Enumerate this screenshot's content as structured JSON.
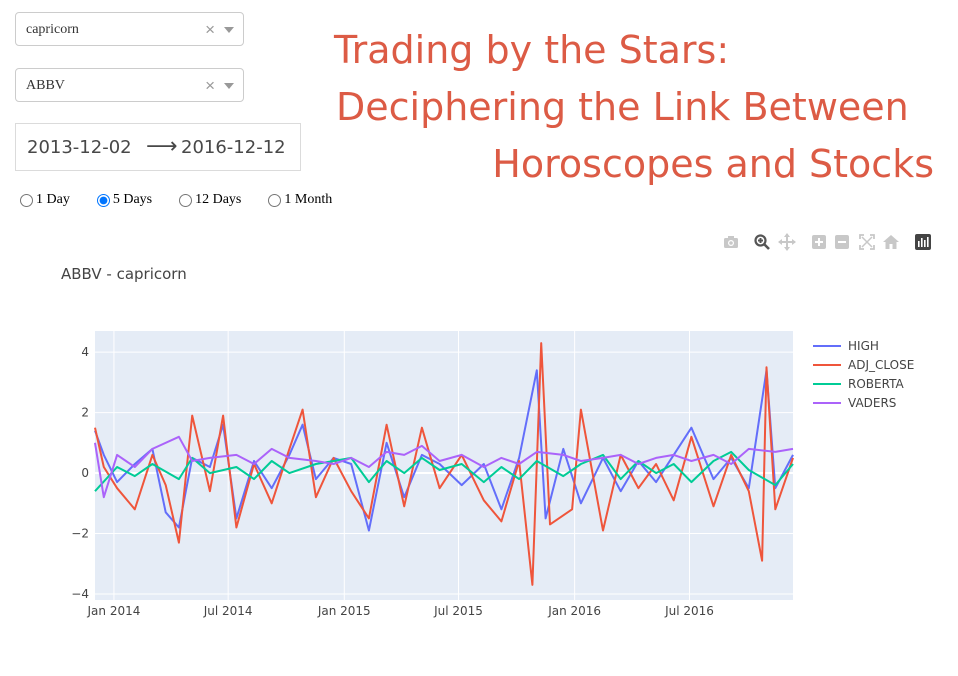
{
  "controls": {
    "sign_dropdown": {
      "value": "capricorn",
      "clear": "×"
    },
    "ticker_dropdown": {
      "value": "ABBV",
      "clear": "×"
    },
    "date_range": {
      "start": "2013-12-02",
      "arrow": "⟶",
      "end": "2016-12-12"
    },
    "frequency_options": [
      {
        "label": "1 Day",
        "checked": false
      },
      {
        "label": "5 Days",
        "checked": true
      },
      {
        "label": "12 Days",
        "checked": false
      },
      {
        "label": "1 Month",
        "checked": false
      }
    ]
  },
  "page_title": {
    "line1": "Trading by the Stars:",
    "line2": "Deciphering the Link Between",
    "line3": "Horoscopes and Stocks"
  },
  "modebar_icons": [
    "camera-icon",
    "zoom-icon",
    "pan-icon",
    "zoom-in-icon",
    "zoom-out-icon",
    "autoscale-icon",
    "reset-axes-icon",
    "plotly-logo-icon"
  ],
  "chart_data": {
    "type": "line",
    "title": "ABBV - capricorn",
    "xlabel": "",
    "ylabel": "",
    "xrange": [
      "2013-12-02",
      "2016-12-12"
    ],
    "ylim": [
      -4.2,
      4.7
    ],
    "x_tick_labels": [
      "Jan 2014",
      "Jul 2014",
      "Jan 2015",
      "Jul 2015",
      "Jan 2016",
      "Jul 2016"
    ],
    "x_tick_dates": [
      "2014-01-01",
      "2014-07-01",
      "2015-01-01",
      "2015-07-01",
      "2016-01-01",
      "2016-07-01"
    ],
    "y_ticks": [
      -4,
      -2,
      0,
      2,
      4
    ],
    "y_tick_labels": [
      "−4",
      "−2",
      "0",
      "2",
      "4"
    ],
    "grid": true,
    "legend_position": "top-right",
    "colors": {
      "HIGH": "#636efa",
      "ADJ_CLOSE": "#ef553b",
      "ROBERTA": "#00cc96",
      "VADERS": "#ab63fa",
      "plot_bg": "#e5ecf6"
    },
    "series": [
      {
        "name": "HIGH",
        "points": [
          [
            "2013-12-02",
            1.4
          ],
          [
            "2013-12-16",
            0.6
          ],
          [
            "2014-01-06",
            -0.3
          ],
          [
            "2014-02-03",
            0.3
          ],
          [
            "2014-03-03",
            0.8
          ],
          [
            "2014-03-24",
            -1.3
          ],
          [
            "2014-04-14",
            -1.8
          ],
          [
            "2014-05-05",
            0.5
          ],
          [
            "2014-06-02",
            0.2
          ],
          [
            "2014-06-23",
            1.6
          ],
          [
            "2014-07-14",
            -1.5
          ],
          [
            "2014-08-11",
            0.4
          ],
          [
            "2014-09-08",
            -0.5
          ],
          [
            "2014-10-06",
            0.6
          ],
          [
            "2014-10-27",
            1.6
          ],
          [
            "2014-11-17",
            -0.2
          ],
          [
            "2014-12-15",
            0.5
          ],
          [
            "2015-01-12",
            0.3
          ],
          [
            "2015-02-09",
            -1.9
          ],
          [
            "2015-03-09",
            1.0
          ],
          [
            "2015-04-06",
            -0.8
          ],
          [
            "2015-05-04",
            0.6
          ],
          [
            "2015-06-01",
            0.3
          ],
          [
            "2015-07-06",
            -0.4
          ],
          [
            "2015-08-10",
            0.3
          ],
          [
            "2015-09-07",
            -1.2
          ],
          [
            "2015-10-05",
            0.5
          ],
          [
            "2015-11-02",
            3.4
          ],
          [
            "2015-11-16",
            -1.5
          ],
          [
            "2015-12-14",
            0.8
          ],
          [
            "2016-01-11",
            -1.0
          ],
          [
            "2016-02-15",
            0.5
          ],
          [
            "2016-03-14",
            -0.6
          ],
          [
            "2016-04-11",
            0.4
          ],
          [
            "2016-05-09",
            -0.3
          ],
          [
            "2016-06-06",
            0.6
          ],
          [
            "2016-07-04",
            1.5
          ],
          [
            "2016-08-08",
            -0.2
          ],
          [
            "2016-09-05",
            0.5
          ],
          [
            "2016-10-03",
            -0.5
          ],
          [
            "2016-10-31",
            3.4
          ],
          [
            "2016-11-14",
            -0.5
          ],
          [
            "2016-12-12",
            0.6
          ]
        ]
      },
      {
        "name": "ADJ_CLOSE",
        "points": [
          [
            "2013-12-02",
            1.5
          ],
          [
            "2013-12-16",
            0.2
          ],
          [
            "2014-01-06",
            -0.5
          ],
          [
            "2014-02-03",
            -1.2
          ],
          [
            "2014-03-03",
            0.6
          ],
          [
            "2014-03-24",
            -0.4
          ],
          [
            "2014-04-14",
            -2.3
          ],
          [
            "2014-05-05",
            1.9
          ],
          [
            "2014-06-02",
            -0.6
          ],
          [
            "2014-06-23",
            1.9
          ],
          [
            "2014-07-14",
            -1.8
          ],
          [
            "2014-08-11",
            0.3
          ],
          [
            "2014-09-08",
            -1.0
          ],
          [
            "2014-10-06",
            0.8
          ],
          [
            "2014-10-27",
            2.1
          ],
          [
            "2014-11-17",
            -0.8
          ],
          [
            "2014-12-15",
            0.5
          ],
          [
            "2015-01-12",
            -0.6
          ],
          [
            "2015-02-09",
            -1.5
          ],
          [
            "2015-03-09",
            1.6
          ],
          [
            "2015-04-06",
            -1.1
          ],
          [
            "2015-05-04",
            1.5
          ],
          [
            "2015-06-01",
            -0.5
          ],
          [
            "2015-07-06",
            0.6
          ],
          [
            "2015-08-10",
            -0.9
          ],
          [
            "2015-09-07",
            -1.6
          ],
          [
            "2015-10-05",
            0.4
          ],
          [
            "2015-10-26",
            -3.7
          ],
          [
            "2015-11-09",
            4.3
          ],
          [
            "2015-11-23",
            -1.7
          ],
          [
            "2015-12-28",
            -1.2
          ],
          [
            "2016-01-11",
            2.1
          ],
          [
            "2016-02-15",
            -1.9
          ],
          [
            "2016-03-14",
            0.6
          ],
          [
            "2016-04-11",
            -0.5
          ],
          [
            "2016-05-09",
            0.3
          ],
          [
            "2016-06-06",
            -0.9
          ],
          [
            "2016-07-04",
            1.2
          ],
          [
            "2016-08-08",
            -1.1
          ],
          [
            "2016-09-05",
            0.6
          ],
          [
            "2016-10-03",
            -0.6
          ],
          [
            "2016-10-24",
            -2.9
          ],
          [
            "2016-10-31",
            3.5
          ],
          [
            "2016-11-14",
            -1.2
          ],
          [
            "2016-12-12",
            0.5
          ]
        ]
      },
      {
        "name": "ROBERTA",
        "points": [
          [
            "2013-12-02",
            -0.6
          ],
          [
            "2014-01-06",
            0.2
          ],
          [
            "2014-02-03",
            -0.1
          ],
          [
            "2014-03-03",
            0.3
          ],
          [
            "2014-04-14",
            -0.2
          ],
          [
            "2014-05-05",
            0.5
          ],
          [
            "2014-06-02",
            0.0
          ],
          [
            "2014-07-14",
            0.2
          ],
          [
            "2014-08-11",
            -0.2
          ],
          [
            "2014-09-08",
            0.4
          ],
          [
            "2014-10-06",
            0.0
          ],
          [
            "2014-11-17",
            0.3
          ],
          [
            "2014-12-15",
            0.4
          ],
          [
            "2015-01-12",
            0.5
          ],
          [
            "2015-02-09",
            -0.3
          ],
          [
            "2015-03-09",
            0.4
          ],
          [
            "2015-04-06",
            0.0
          ],
          [
            "2015-05-04",
            0.5
          ],
          [
            "2015-06-01",
            0.1
          ],
          [
            "2015-07-06",
            0.3
          ],
          [
            "2015-08-10",
            -0.3
          ],
          [
            "2015-09-07",
            0.2
          ],
          [
            "2015-10-05",
            -0.2
          ],
          [
            "2015-11-02",
            0.4
          ],
          [
            "2015-12-14",
            -0.1
          ],
          [
            "2016-01-11",
            0.3
          ],
          [
            "2016-02-15",
            0.6
          ],
          [
            "2016-03-14",
            -0.2
          ],
          [
            "2016-04-11",
            0.4
          ],
          [
            "2016-05-09",
            0.0
          ],
          [
            "2016-06-06",
            0.3
          ],
          [
            "2016-07-04",
            -0.3
          ],
          [
            "2016-08-08",
            0.4
          ],
          [
            "2016-09-05",
            0.7
          ],
          [
            "2016-10-03",
            0.1
          ],
          [
            "2016-11-14",
            -0.4
          ],
          [
            "2016-12-12",
            0.3
          ]
        ]
      },
      {
        "name": "VADERS",
        "points": [
          [
            "2013-12-02",
            1.0
          ],
          [
            "2013-12-16",
            -0.8
          ],
          [
            "2014-01-06",
            0.6
          ],
          [
            "2014-02-03",
            0.2
          ],
          [
            "2014-03-03",
            0.8
          ],
          [
            "2014-04-14",
            1.2
          ],
          [
            "2014-05-05",
            0.4
          ],
          [
            "2014-06-02",
            0.5
          ],
          [
            "2014-07-14",
            0.6
          ],
          [
            "2014-08-11",
            0.3
          ],
          [
            "2014-09-08",
            0.8
          ],
          [
            "2014-10-06",
            0.5
          ],
          [
            "2014-11-17",
            0.4
          ],
          [
            "2014-12-15",
            0.3
          ],
          [
            "2015-01-12",
            0.5
          ],
          [
            "2015-02-09",
            0.2
          ],
          [
            "2015-03-09",
            0.7
          ],
          [
            "2015-04-06",
            0.6
          ],
          [
            "2015-05-04",
            0.9
          ],
          [
            "2015-06-01",
            0.4
          ],
          [
            "2015-07-06",
            0.6
          ],
          [
            "2015-08-10",
            0.2
          ],
          [
            "2015-09-07",
            0.5
          ],
          [
            "2015-10-05",
            0.3
          ],
          [
            "2015-11-02",
            0.7
          ],
          [
            "2015-12-14",
            0.6
          ],
          [
            "2016-01-11",
            0.4
          ],
          [
            "2016-02-15",
            0.5
          ],
          [
            "2016-03-14",
            0.6
          ],
          [
            "2016-04-11",
            0.3
          ],
          [
            "2016-05-09",
            0.5
          ],
          [
            "2016-06-06",
            0.6
          ],
          [
            "2016-07-04",
            0.4
          ],
          [
            "2016-08-08",
            0.6
          ],
          [
            "2016-09-05",
            0.3
          ],
          [
            "2016-10-03",
            0.8
          ],
          [
            "2016-11-14",
            0.7
          ],
          [
            "2016-12-12",
            0.8
          ]
        ]
      }
    ]
  }
}
